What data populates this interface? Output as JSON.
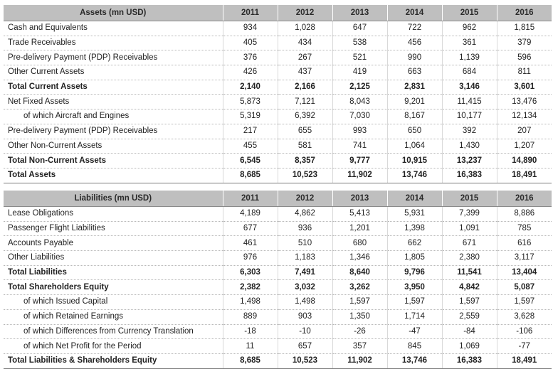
{
  "assets": {
    "header": "Assets (mn USD)",
    "years": [
      "2011",
      "2012",
      "2013",
      "2014",
      "2015",
      "2016"
    ],
    "rows": [
      {
        "label": "Cash and Equivalents",
        "values": [
          "934",
          "1,028",
          "647",
          "722",
          "962",
          "1,815"
        ],
        "bold": false,
        "indent": false
      },
      {
        "label": "Trade Receivables",
        "values": [
          "405",
          "434",
          "538",
          "456",
          "361",
          "379"
        ],
        "bold": false,
        "indent": false
      },
      {
        "label": "Pre-delivery Payment (PDP) Receivables",
        "values": [
          "376",
          "267",
          "521",
          "990",
          "1,139",
          "596"
        ],
        "bold": false,
        "indent": false
      },
      {
        "label": "Other Current Assets",
        "values": [
          "426",
          "437",
          "419",
          "663",
          "684",
          "811"
        ],
        "bold": false,
        "indent": false
      },
      {
        "label": "Total Current Assets",
        "values": [
          "2,140",
          "2,166",
          "2,125",
          "2,831",
          "3,146",
          "3,601"
        ],
        "bold": true,
        "indent": false
      },
      {
        "label": "Net Fixed Assets",
        "values": [
          "5,873",
          "7,121",
          "8,043",
          "9,201",
          "11,415",
          "13,476"
        ],
        "bold": false,
        "indent": false
      },
      {
        "label": "of which Aircraft and Engines",
        "values": [
          "5,319",
          "6,392",
          "7,030",
          "8,167",
          "10,177",
          "12,134"
        ],
        "bold": false,
        "indent": true
      },
      {
        "label": "Pre-delivery Payment (PDP) Receivables",
        "values": [
          "217",
          "655",
          "993",
          "650",
          "392",
          "207"
        ],
        "bold": false,
        "indent": false
      },
      {
        "label": "Other Non-Current Assets",
        "values": [
          "455",
          "581",
          "741",
          "1,064",
          "1,430",
          "1,207"
        ],
        "bold": false,
        "indent": false
      },
      {
        "label": "Total Non-Current Assets",
        "values": [
          "6,545",
          "8,357",
          "9,777",
          "10,915",
          "13,237",
          "14,890"
        ],
        "bold": true,
        "indent": false
      },
      {
        "label": "Total Assets",
        "values": [
          "8,685",
          "10,523",
          "11,902",
          "13,746",
          "16,383",
          "18,491"
        ],
        "bold": true,
        "indent": false
      }
    ]
  },
  "liabilities": {
    "header": "Liabilities (mn USD)",
    "years": [
      "2011",
      "2012",
      "2013",
      "2014",
      "2015",
      "2016"
    ],
    "rows": [
      {
        "label": "Lease Obligations",
        "values": [
          "4,189",
          "4,862",
          "5,413",
          "5,931",
          "7,399",
          "8,886"
        ],
        "bold": false,
        "indent": false
      },
      {
        "label": "Passenger Flight Liabilities",
        "values": [
          "677",
          "936",
          "1,201",
          "1,398",
          "1,091",
          "785"
        ],
        "bold": false,
        "indent": false
      },
      {
        "label": "Accounts Payable",
        "values": [
          "461",
          "510",
          "680",
          "662",
          "671",
          "616"
        ],
        "bold": false,
        "indent": false
      },
      {
        "label": "Other Liabilities",
        "values": [
          "976",
          "1,183",
          "1,346",
          "1,805",
          "2,380",
          "3,117"
        ],
        "bold": false,
        "indent": false
      },
      {
        "label": "Total Liabilities",
        "values": [
          "6,303",
          "7,491",
          "8,640",
          "9,796",
          "11,541",
          "13,404"
        ],
        "bold": true,
        "indent": false
      },
      {
        "label": "Total Shareholders Equity",
        "values": [
          "2,382",
          "3,032",
          "3,262",
          "3,950",
          "4,842",
          "5,087"
        ],
        "bold": true,
        "indent": false
      },
      {
        "label": "of which Issued Capital",
        "values": [
          "1,498",
          "1,498",
          "1,597",
          "1,597",
          "1,597",
          "1,597"
        ],
        "bold": false,
        "indent": true
      },
      {
        "label": "of which Retained Earnings",
        "values": [
          "889",
          "903",
          "1,350",
          "1,714",
          "2,559",
          "3,628"
        ],
        "bold": false,
        "indent": true
      },
      {
        "label": "of which Differences from Currency Translation",
        "values": [
          "-18",
          "-10",
          "-26",
          "-47",
          "-84",
          "-106"
        ],
        "bold": false,
        "indent": true
      },
      {
        "label": "of which Net Profit for the Period",
        "values": [
          "11",
          "657",
          "357",
          "845",
          "1,069",
          "-77"
        ],
        "bold": false,
        "indent": true
      },
      {
        "label": "Total Liabilities & Shareholders Equity",
        "values": [
          "8,685",
          "10,523",
          "11,902",
          "13,746",
          "16,383",
          "18,491"
        ],
        "bold": true,
        "indent": false
      }
    ]
  }
}
